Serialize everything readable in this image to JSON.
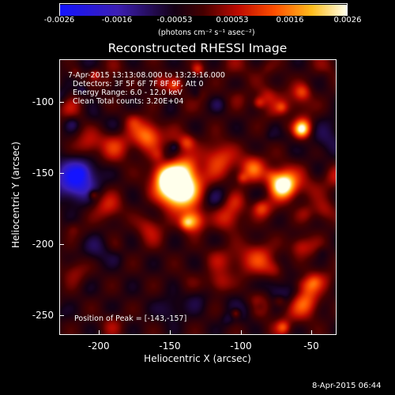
{
  "colorbar": {
    "ticks": [
      "-0.0026",
      "-0.0016",
      "-0.00053",
      "0.00053",
      "0.0016",
      "0.0026"
    ],
    "unit": "(photons cm⁻² s⁻¹ asec⁻²)"
  },
  "title": "Reconstructed RHESSI Image",
  "annotations": {
    "time": "7-Apr-2015 13:13:08.000 to 13:23:16.000",
    "detectors": "Detectors: 3F 5F 6F 7F 8F 9F, Att 0",
    "energy": "Energy Range: 6.0 - 12.0 keV",
    "clean": "Clean     Total counts: 3.20E+04",
    "peak": "Position of Peak = [-143,-157]"
  },
  "axes": {
    "xlabel": "Heliocentric X (arcsec)",
    "ylabel": "Heliocentric Y (arcsec)",
    "xticks": [
      "-200",
      "-150",
      "-100",
      "-50"
    ],
    "yticks": [
      "-100",
      "-150",
      "-200",
      "-250"
    ],
    "xrange": [
      -228,
      -32
    ],
    "yrange": [
      -62,
      -258
    ]
  },
  "footer": {
    "date": "8-Apr-2015 06:44"
  }
}
